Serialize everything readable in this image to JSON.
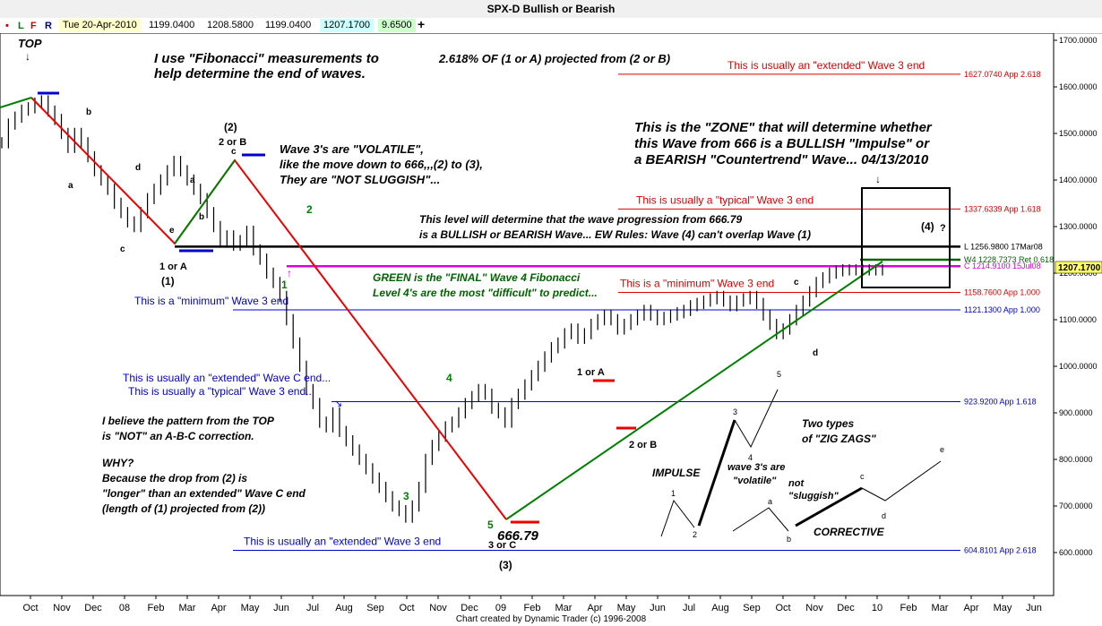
{
  "window": {
    "title": "SPX-D Bullish or Bearish"
  },
  "toolbar": {
    "buttons": [
      "•",
      "L",
      "F",
      "R"
    ],
    "date": "Tue 20-Apr-2010",
    "open": "1199.0400",
    "high": "1208.5800",
    "low": "1199.0400",
    "close": "1207.1700",
    "change": "9.6500",
    "plus": "+"
  },
  "footer": "Chart created by Dynamic Trader  (c)  1996-2008",
  "chart_data": {
    "type": "line",
    "ylim": [
      600,
      1700
    ],
    "y_ticks": [
      "1700.0000",
      "1600.0000",
      "1500.0000",
      "1400.0000",
      "1300.0000",
      "1200.0000",
      "1100.0000",
      "1000.0000",
      "900.0000",
      "800.0000",
      "700.0000",
      "600.0000"
    ],
    "x_ticks": [
      "Oct",
      "Nov",
      "Dec",
      "08",
      "Feb",
      "Mar",
      "Apr",
      "May",
      "Jun",
      "Jul",
      "Aug",
      "Sep",
      "Oct",
      "Nov",
      "Dec",
      "09",
      "Feb",
      "Mar",
      "Apr",
      "May",
      "Jun",
      "Jul",
      "Aug",
      "Sep",
      "Oct",
      "Nov",
      "Dec",
      "10",
      "Feb",
      "Mar",
      "Apr",
      "May",
      "Jun"
    ],
    "last_price_label": "1207.1700",
    "series": [
      {
        "x": [
          0,
          5,
          10,
          15,
          20,
          25,
          30,
          35,
          40,
          45,
          50,
          55,
          60,
          65,
          70,
          75,
          80,
          85,
          90,
          95,
          100,
          105,
          110,
          115,
          120,
          125,
          130,
          135,
          140,
          145,
          150,
          155,
          160,
          165,
          170,
          175,
          180,
          185,
          190,
          195,
          200,
          205,
          210,
          215,
          220,
          225,
          230,
          235,
          240,
          245,
          250,
          255,
          260,
          265,
          270,
          275,
          280,
          285,
          290,
          295,
          300,
          305,
          310,
          315,
          320,
          325,
          330,
          335,
          340,
          345,
          350,
          355,
          360,
          365,
          370,
          375,
          380,
          385,
          390,
          395,
          400,
          405,
          410,
          415,
          420,
          425,
          430,
          435,
          440,
          445,
          450,
          455,
          460,
          465,
          470,
          475,
          480,
          485,
          490,
          495,
          500,
          505,
          510,
          515,
          520,
          525,
          530,
          535,
          540,
          545,
          550,
          555,
          560,
          565,
          570,
          575,
          580,
          585,
          590,
          595,
          600,
          605,
          610,
          615,
          620,
          625,
          630,
          635,
          640,
          645,
          650,
          655,
          660,
          665
        ],
        "values": [
          1480,
          1520,
          1535,
          1550,
          1555,
          1565,
          1570,
          1548,
          1530,
          1500,
          1470,
          1500,
          1480,
          1450,
          1420,
          1400,
          1380,
          1350,
          1330,
          1310,
          1300,
          1330,
          1360,
          1380,
          1400,
          1420,
          1440,
          1420,
          1400,
          1380,
          1360,
          1330,
          1300,
          1270,
          1280,
          1260,
          1270,
          1290,
          1250,
          1230,
          1200,
          1180,
          1150,
          1100,
          1050,
          1000,
          950,
          920,
          880,
          870,
          900,
          860,
          840,
          820,
          800,
          780,
          760,
          740,
          720,
          700,
          690,
          676,
          700,
          740,
          800,
          830,
          850,
          870,
          880,
          900,
          920,
          935,
          950,
          940,
          910,
          900,
          880,
          920,
          940,
          960,
          980,
          1000,
          1020,
          1040,
          1050,
          1070,
          1080,
          1060,
          1070,
          1090,
          1100,
          1110,
          1100,
          1080,
          1090,
          1100,
          1110,
          1120,
          1110,
          1100,
          1105,
          1110,
          1115,
          1120,
          1130,
          1135,
          1140,
          1145,
          1150,
          1140,
          1130,
          1140,
          1145,
          1150,
          1135,
          1110,
          1090,
          1070,
          1080,
          1100,
          1120,
          1140,
          1160,
          1180,
          1190,
          1200,
          1205,
          1207,
          1207,
          1207,
          1207,
          1207,
          1207,
          1207
        ]
      }
    ]
  },
  "levels": [
    {
      "label": "1627.0740 App 2.618",
      "value": 1627.074,
      "color": "#dd0000",
      "note": "This is usually an \"extended\" Wave 3 end"
    },
    {
      "label": "1337.6339 App 1.618",
      "value": 1337.634,
      "color": "#dd0000",
      "note": "This is usually a \"typical\" Wave 3 end"
    },
    {
      "label": "L 1256.9800 17Mar08",
      "value": 1256.98,
      "color": "#000000"
    },
    {
      "label": "W4 1228.7373 Ret 0.618",
      "value": 1228.737,
      "color": "#006400"
    },
    {
      "label": "C 1214.9100 15Jul08",
      "value": 1214.91,
      "color": "#dd00dd"
    },
    {
      "label": "1158.7600 App 1.000",
      "value": 1158.76,
      "color": "#dd0000",
      "note": "This is a \"minimum\" Wave 3 end"
    },
    {
      "label": "1121.1300 App 1.000",
      "value": 1121.13,
      "color": "#0000cc",
      "note": "This is a \"minimum\" Wave 3 end"
    },
    {
      "label": "923.9200 App 1.618",
      "value": 923.92,
      "color": "#0000cc"
    },
    {
      "label": "604.8101 App 2.618",
      "value": 604.81,
      "color": "#0000cc",
      "note": "This is usually an \"extended\" Wave 3 end"
    }
  ],
  "annotations": {
    "top": "TOP",
    "fib_text1": "I use \"Fibonacci\" measurements to",
    "fib_text2": "help  determine the end of waves.",
    "proj_text": "2.618% OF (1 or A) projected from (2 or B)",
    "zone1": "This is the \"ZONE\" that will determine whether",
    "zone2": "this Wave from 666 is a BULLISH \"Impulse\" or",
    "zone3": "a BEARISH \"Countertrend\" Wave... 04/13/2010",
    "volatile1": "Wave 3's are \"VOLATILE\",",
    "volatile2": "like the move down to 666,,,(2) to (3),",
    "volatile3": "They are \"NOT SLUGGISH\"...",
    "level1": "This level will determine that the wave progression from 666.79",
    "level2": "is a BULLISH or BEARISH Wave... EW Rules: Wave (4) can't overlap Wave (1)",
    "green1": "GREEN is the \"FINAL\" Wave 4 Fibonacci",
    "green2": "Level 4's are the most \"difficult\" to predict...",
    "extC": "This is usually an \"extended\" Wave C end...",
    "typ3": "This is usually a \"typical\" Wave 3 end..",
    "belief1": "I believe the pattern from the TOP",
    "belief2": "is \"NOT\" an A-B-C correction.",
    "why": "WHY?",
    "because1": "Because the drop from (2) is",
    "because2": "\"longer\" than an extended\" Wave C end",
    "because3": "(length of (1) projected from (2))",
    "twotypes1": "Two types",
    "twotypes2": "of \"ZIG ZAGS\"",
    "impulse": "IMPULSE",
    "corrective": "CORRECTIVE",
    "w3volatile1": "wave 3's are",
    "w3volatile2": "\"volatile\"",
    "notsluggish1": "not",
    "notsluggish2": "\"sluggish\"",
    "low_value": "666.79",
    "wave_labels": {
      "p1": "(1)",
      "p2": "(2)",
      "p3": "(3)",
      "p4": "(4)",
      "q": "?",
      "oneA": "1 or A",
      "twoB": "2 or B",
      "threeC": "3 or C",
      "oneA2": "1 or A",
      "twoB2": "2 or B",
      "g1": "1",
      "g2": "2",
      "g3": "3",
      "g4": "4",
      "g5": "5",
      "a": "a",
      "b": "b",
      "c": "c",
      "d": "d",
      "e": "e",
      "a2": "a",
      "b2": "b",
      "c2": "c",
      "c3": "c",
      "d3": "d",
      "i1": "1",
      "i2": "2",
      "i3": "3",
      "i4": "4",
      "i5": "5",
      "ca": "a",
      "cb": "b",
      "cc": "c",
      "cd": "d",
      "ce": "e"
    }
  }
}
